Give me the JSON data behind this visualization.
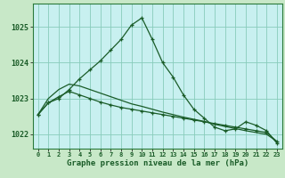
{
  "title": "Graphe pression niveau de la mer (hPa)",
  "background_color": "#c8e8c8",
  "plot_bg_color": "#c8f0f0",
  "grid_color": "#88ccbb",
  "line_color": "#1a5c28",
  "x_ticks": [
    0,
    1,
    2,
    3,
    4,
    5,
    6,
    7,
    8,
    9,
    10,
    11,
    12,
    13,
    14,
    15,
    16,
    17,
    18,
    19,
    20,
    21,
    22,
    23
  ],
  "ylim": [
    1021.6,
    1025.65
  ],
  "yticks": [
    1022,
    1023,
    1024,
    1025
  ],
  "series1": [
    1022.55,
    1022.88,
    1023.0,
    1023.25,
    1023.55,
    1023.8,
    1024.05,
    1024.35,
    1024.65,
    1025.05,
    1025.25,
    1024.65,
    1024.0,
    1023.6,
    1023.1,
    1022.7,
    1022.45,
    1022.2,
    1022.1,
    1022.15,
    1022.35,
    1022.25,
    1022.1,
    1021.75
  ],
  "series2": [
    1022.55,
    1022.88,
    1023.05,
    1023.2,
    1023.1,
    1023.0,
    1022.9,
    1022.82,
    1022.75,
    1022.7,
    1022.65,
    1022.6,
    1022.55,
    1022.5,
    1022.45,
    1022.4,
    1022.35,
    1022.3,
    1022.25,
    1022.2,
    1022.15,
    1022.1,
    1022.05,
    1021.8
  ],
  "series3": [
    1022.55,
    1023.0,
    1023.25,
    1023.4,
    1023.35,
    1023.25,
    1023.15,
    1023.05,
    1022.95,
    1022.85,
    1022.78,
    1022.7,
    1022.62,
    1022.55,
    1022.48,
    1022.42,
    1022.36,
    1022.28,
    1022.22,
    1022.16,
    1022.1,
    1022.05,
    1022.0,
    1021.8
  ]
}
